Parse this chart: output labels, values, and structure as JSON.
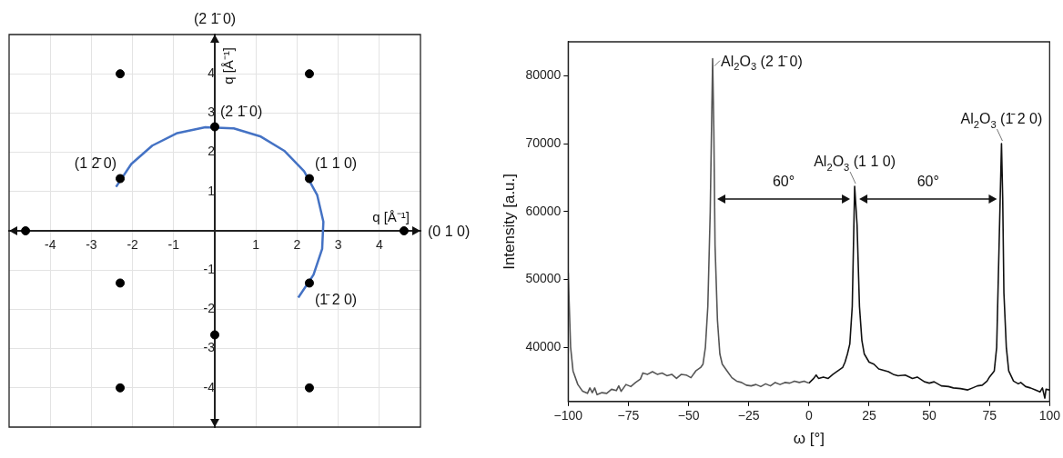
{
  "chart_data": [
    {
      "type": "scatter",
      "xlabel": "q [Å⁻¹]",
      "ylabel": "q [Å⁻¹]",
      "xlim": [
        -5,
        5
      ],
      "ylim": [
        -5,
        5
      ],
      "xticks": [
        -4,
        -3,
        -2,
        -1,
        1,
        2,
        3,
        4
      ],
      "yticks": [
        -4,
        -3,
        -2,
        -1,
        1,
        2,
        3,
        4
      ],
      "grid": true,
      "marker": "circle",
      "series": [
        {
          "type": "scatter",
          "color": "#000000",
          "x": [
            -2.3,
            2.3,
            0,
            -2.3,
            2.3,
            -4.6,
            4.6,
            -2.3,
            2.3,
            0,
            -2.3,
            2.3
          ],
          "values": [
            4,
            4,
            2.65,
            1.33,
            1.33,
            0,
            0,
            -1.33,
            -1.33,
            -2.65,
            -4,
            -4
          ]
        },
        {
          "type": "line",
          "color": "#4472c4",
          "marker": "none",
          "line_style": "solid",
          "x": [
            -2.4,
            -2.03,
            -1.52,
            -0.91,
            -0.23,
            0.46,
            1.12,
            1.7,
            2.17,
            2.49,
            2.64,
            2.61,
            2.4,
            2.03
          ],
          "values": [
            1.12,
            1.7,
            2.17,
            2.49,
            2.64,
            2.61,
            2.4,
            2.03,
            1.52,
            0.91,
            0.23,
            -0.46,
            -1.12,
            -1.7
          ]
        }
      ],
      "annotations": [
        "(2 1̄ 0)",
        "(0 1 0)",
        {
          "text": "(2 1̄ 0)",
          "x": 0,
          "y": 2.65
        },
        {
          "text": "(1 2̄ 0)",
          "x": -2.3,
          "y": 1.33
        },
        {
          "text": "(1 1 0)",
          "x": 2.3,
          "y": 1.33
        },
        {
          "text": "(1̄ 2 0)",
          "x": 2.3,
          "y": -1.33
        }
      ]
    },
    {
      "type": "line",
      "xlabel": "ω [°]",
      "ylabel": "Intensity [a.u.]",
      "xlim": [
        -100,
        100
      ],
      "ylim": [
        32000,
        85000
      ],
      "xticks": [
        {
          "value": -100,
          "label": "−100"
        },
        {
          "value": -75,
          "label": "−75"
        },
        {
          "value": -50,
          "label": "−50"
        },
        {
          "value": -25,
          "label": "−25"
        },
        0,
        25,
        50,
        75,
        100
      ],
      "yticks": [
        40000,
        50000,
        60000,
        70000,
        80000
      ],
      "grid": false,
      "marker": "none",
      "line_style": "solid",
      "series": [
        {
          "color": "#555555",
          "x": [
            -100,
            -99,
            -98,
            -96,
            -94,
            -92,
            -91,
            -90,
            -89,
            -88,
            -86,
            -84,
            -82,
            -80,
            -79,
            -78,
            -76,
            -74,
            -72,
            -70,
            -69,
            -67,
            -65,
            -63,
            -61,
            -59,
            -57,
            -55,
            -53,
            -51,
            -49,
            -47,
            -45,
            -44,
            -43,
            -42,
            -41,
            -40,
            -39.5,
            -39,
            -38,
            -37,
            -36,
            -34,
            -32,
            -30,
            -28,
            -26,
            -24,
            -22,
            -20,
            -18,
            -16,
            -14,
            -12,
            -10,
            -8,
            -6,
            -4,
            -2,
            0
          ],
          "values": [
            51000,
            40000,
            36500,
            34500,
            33500,
            33200,
            34000,
            33300,
            34000,
            33000,
            33300,
            33200,
            33800,
            33600,
            34300,
            33500,
            34500,
            34200,
            34800,
            35300,
            36200,
            36000,
            36400,
            36000,
            36200,
            35800,
            36000,
            35400,
            36000,
            35900,
            35500,
            36500,
            37000,
            37500,
            40000,
            46000,
            60000,
            82500,
            72000,
            55000,
            44000,
            39000,
            37500,
            36500,
            35500,
            35000,
            34800,
            34400,
            34300,
            34500,
            34200,
            34600,
            34300,
            34800,
            34500,
            34800,
            34700,
            35000,
            34800,
            35000,
            34700
          ]
        },
        {
          "color": "#111111",
          "x": [
            0,
            2,
            3,
            4,
            6,
            8,
            10,
            12,
            14,
            15,
            16,
            17,
            18,
            19,
            20,
            21,
            22,
            23,
            25,
            27,
            29,
            31,
            33,
            35,
            37,
            40,
            43,
            45,
            48,
            50,
            52,
            55,
            58,
            60,
            63,
            66,
            68,
            70,
            72,
            74,
            75,
            77,
            78,
            79,
            80,
            80.5,
            81,
            82,
            83,
            85,
            87,
            88,
            90,
            92,
            94,
            96,
            97,
            98,
            98.5,
            100
          ],
          "values": [
            34700,
            35400,
            35900,
            35400,
            35600,
            35400,
            36000,
            36500,
            37000,
            37800,
            39000,
            40500,
            46000,
            63700,
            58000,
            46000,
            41000,
            39000,
            37800,
            37500,
            36800,
            36600,
            36400,
            36000,
            35800,
            35900,
            35400,
            35600,
            34900,
            34700,
            34900,
            34300,
            34200,
            34000,
            33900,
            33700,
            34000,
            34300,
            34400,
            35000,
            35600,
            36500,
            40000,
            55000,
            70000,
            62000,
            48000,
            40000,
            36500,
            35000,
            34600,
            34800,
            34200,
            34000,
            33700,
            33400,
            34000,
            32500,
            33800,
            33700
          ]
        }
      ],
      "annotations": [
        {
          "text": "Al$_{2}$O$_{3}$ (2 1̄ 0)",
          "x": -40,
          "y": 82500
        },
        "60°",
        {
          "text": "Al$_{2}$O$_{3}$ (1 1 0)",
          "x": 19,
          "y": 63700
        },
        "60°",
        {
          "text": "Al$_{2}$O$_{3}$ (1̄ 2 0)",
          "x": 80,
          "y": 70000
        }
      ]
    }
  ]
}
